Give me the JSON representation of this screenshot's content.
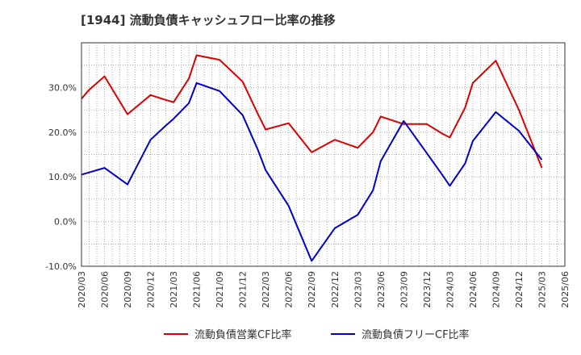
{
  "title": "[1944]  流動負債キャッシュフロー比率の推移",
  "chart_data": {
    "type": "line",
    "title": "[1944]  流動負債キャッシュフロー比率の推移",
    "xlabel": "",
    "ylabel": "",
    "ylim": [
      -10,
      40
    ],
    "yticks": [
      -10,
      0,
      10,
      20,
      30
    ],
    "ytick_labels": [
      "-10.0%",
      "0.0%",
      "10.0%",
      "20.0%",
      "30.0%"
    ],
    "grid": true,
    "legend_position": "bottom",
    "x_labels": [
      "2020/03",
      "2020/06",
      "2020/09",
      "2020/12",
      "2021/03",
      "2021/06",
      "2021/09",
      "2021/12",
      "2022/03",
      "2022/06",
      "2022/09",
      "2022/12",
      "2023/03",
      "2023/06",
      "2023/09",
      "2023/12",
      "2024/03",
      "2024/06",
      "2024/09",
      "2024/12",
      "2025/03",
      "2025/06"
    ],
    "x": [
      "2020/03",
      "2020/04",
      "2020/06",
      "2020/09",
      "2020/12",
      "2021/02",
      "2021/03",
      "2021/05",
      "2021/06",
      "2021/09",
      "2021/12",
      "2022/02",
      "2022/03",
      "2022/06",
      "2022/09",
      "2022/12",
      "2023/03",
      "2023/05",
      "2023/06",
      "2023/09",
      "2023/12",
      "2024/02",
      "2024/03",
      "2024/05",
      "2024/06",
      "2024/09",
      "2024/12",
      "2025/03"
    ],
    "series": [
      {
        "name": "流動負債営業CF比率",
        "color": "#dd0000",
        "values": [
          27.5,
          29.5,
          32.5,
          24.0,
          28.3,
          27.2,
          26.7,
          32.0,
          37.2,
          36.2,
          31.3,
          24.0,
          20.6,
          22.0,
          15.5,
          18.3,
          16.5,
          20.0,
          23.5,
          21.8,
          21.8,
          19.7,
          18.8,
          25.5,
          31.0,
          36.0,
          25.0,
          12.0
        ]
      },
      {
        "name": "流動負債フリーCF比率",
        "color": "#0000cc",
        "values": [
          10.5,
          11.0,
          12.0,
          8.3,
          18.3,
          21.5,
          23.0,
          26.5,
          31.0,
          29.2,
          23.8,
          16.0,
          11.5,
          3.5,
          -8.8,
          -1.5,
          1.5,
          7.0,
          13.5,
          22.5,
          15.3,
          10.5,
          8.0,
          13.0,
          18.0,
          24.5,
          20.3,
          13.8
        ]
      }
    ]
  }
}
